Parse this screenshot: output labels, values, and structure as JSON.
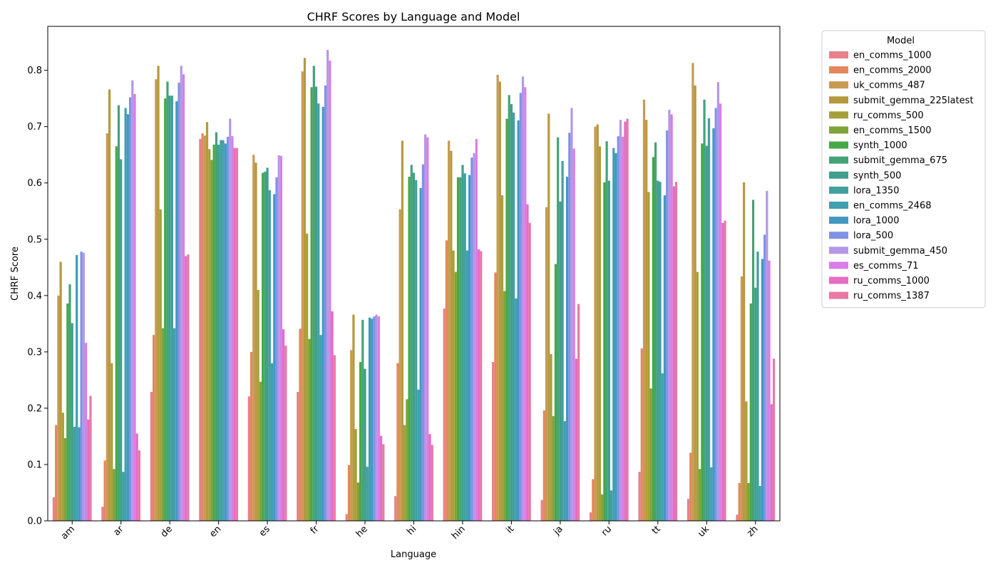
{
  "chart_data": {
    "type": "bar",
    "title": "CHRF Scores by Language and Model",
    "xlabel": "Language",
    "ylabel": "CHRF Score",
    "ylim": [
      0,
      0.878
    ],
    "yticks": [
      0.0,
      0.1,
      0.2,
      0.3,
      0.4,
      0.5,
      0.6,
      0.7,
      0.8
    ],
    "ytick_labels": [
      "0.0",
      "0.1",
      "0.2",
      "0.3",
      "0.4",
      "0.5",
      "0.6",
      "0.7",
      "0.8"
    ],
    "grid": false,
    "legend": {
      "title": "Model",
      "placement": "outside-right"
    },
    "categories": [
      "am",
      "ar",
      "de",
      "en",
      "es",
      "fr",
      "he",
      "hi",
      "hin",
      "it",
      "ja",
      "ru",
      "tt",
      "uk",
      "zh"
    ],
    "series": [
      {
        "name": "en_comms_1000",
        "color": "#e7818d",
        "values": [
          0.042,
          0.025,
          0.229,
          0.678,
          0.221,
          0.229,
          0.012,
          0.044,
          0.377,
          0.282,
          0.037,
          0.015,
          0.087,
          0.039,
          0.011
        ]
      },
      {
        "name": "en_comms_2000",
        "color": "#e4875c",
        "values": [
          0.17,
          0.107,
          0.33,
          0.688,
          0.3,
          0.341,
          0.099,
          0.28,
          0.498,
          0.441,
          0.196,
          0.074,
          0.306,
          0.121,
          0.067
        ]
      },
      {
        "name": "uk_comms_487",
        "color": "#c99a55",
        "values": [
          0.4,
          0.688,
          0.784,
          0.684,
          0.65,
          0.798,
          0.303,
          0.553,
          0.675,
          0.792,
          0.557,
          0.7,
          0.748,
          0.813,
          0.434
        ]
      },
      {
        "name": "submit_gemma_225latest",
        "color": "#b59a3c",
        "values": [
          0.46,
          0.766,
          0.808,
          0.708,
          0.636,
          0.822,
          0.366,
          0.675,
          0.657,
          0.78,
          0.723,
          0.704,
          0.712,
          0.773,
          0.601
        ]
      },
      {
        "name": "ru_comms_500",
        "color": "#a5a13a",
        "values": [
          0.192,
          0.28,
          0.553,
          0.66,
          0.41,
          0.51,
          0.163,
          0.17,
          0.48,
          0.578,
          0.296,
          0.665,
          0.584,
          0.442,
          0.212
        ]
      },
      {
        "name": "en_comms_1500",
        "color": "#7fa23a",
        "values": [
          0.147,
          0.092,
          0.342,
          0.641,
          0.247,
          0.323,
          0.068,
          0.216,
          0.442,
          0.408,
          0.186,
          0.047,
          0.235,
          0.092,
          0.067
        ]
      },
      {
        "name": "synth_1000",
        "color": "#46a847",
        "values": [
          0.386,
          0.665,
          0.75,
          0.668,
          0.618,
          0.77,
          0.282,
          0.611,
          0.61,
          0.714,
          0.456,
          0.601,
          0.646,
          0.67,
          0.386
        ]
      },
      {
        "name": "submit_gemma_675",
        "color": "#46a277",
        "values": [
          0.42,
          0.738,
          0.78,
          0.69,
          0.62,
          0.808,
          0.357,
          0.632,
          0.61,
          0.756,
          0.681,
          0.674,
          0.672,
          0.748,
          0.57
        ]
      },
      {
        "name": "synth_500",
        "color": "#419e8e",
        "values": [
          0.351,
          0.642,
          0.755,
          0.668,
          0.627,
          0.771,
          0.27,
          0.618,
          0.632,
          0.74,
          0.567,
          0.604,
          0.604,
          0.666,
          0.414
        ]
      },
      {
        "name": "lora_1350",
        "color": "#40a09e",
        "values": [
          0.167,
          0.087,
          0.755,
          0.676,
          0.587,
          0.741,
          0.096,
          0.605,
          0.617,
          0.725,
          0.639,
          0.054,
          0.602,
          0.715,
          0.478
        ]
      },
      {
        "name": "en_comms_2468",
        "color": "#40a0af",
        "values": [
          0.472,
          0.733,
          0.342,
          0.676,
          0.28,
          0.33,
          0.361,
          0.233,
          0.48,
          0.395,
          0.177,
          0.662,
          0.262,
          0.095,
          0.062
        ]
      },
      {
        "name": "lora_1000",
        "color": "#4198c3",
        "values": [
          0.166,
          0.722,
          0.745,
          0.67,
          0.58,
          0.735,
          0.359,
          0.591,
          0.614,
          0.711,
          0.611,
          0.653,
          0.578,
          0.697,
          0.465
        ]
      },
      {
        "name": "lora_500",
        "color": "#8192e6",
        "values": [
          0.478,
          0.752,
          0.778,
          0.682,
          0.61,
          0.773,
          0.363,
          0.633,
          0.645,
          0.76,
          0.689,
          0.683,
          0.693,
          0.733,
          0.508
        ]
      },
      {
        "name": "submit_gemma_450",
        "color": "#b398e6",
        "values": [
          0.476,
          0.782,
          0.808,
          0.714,
          0.649,
          0.836,
          0.366,
          0.686,
          0.653,
          0.789,
          0.733,
          0.712,
          0.73,
          0.779,
          0.586
        ]
      },
      {
        "name": "es_comms_71",
        "color": "#d97ee6",
        "values": [
          0.316,
          0.758,
          0.793,
          0.683,
          0.648,
          0.817,
          0.363,
          0.681,
          0.678,
          0.77,
          0.661,
          0.682,
          0.722,
          0.741,
          0.462
        ]
      },
      {
        "name": "ru_comms_1000",
        "color": "#e56dc4",
        "values": [
          0.18,
          0.155,
          0.47,
          0.662,
          0.34,
          0.372,
          0.151,
          0.154,
          0.482,
          0.562,
          0.288,
          0.709,
          0.594,
          0.529,
          0.207
        ]
      },
      {
        "name": "ru_comms_1387",
        "color": "#e77aa3",
        "values": [
          0.222,
          0.125,
          0.473,
          0.662,
          0.311,
          0.294,
          0.136,
          0.135,
          0.479,
          0.529,
          0.385,
          0.714,
          0.602,
          0.533,
          0.288
        ]
      }
    ]
  }
}
